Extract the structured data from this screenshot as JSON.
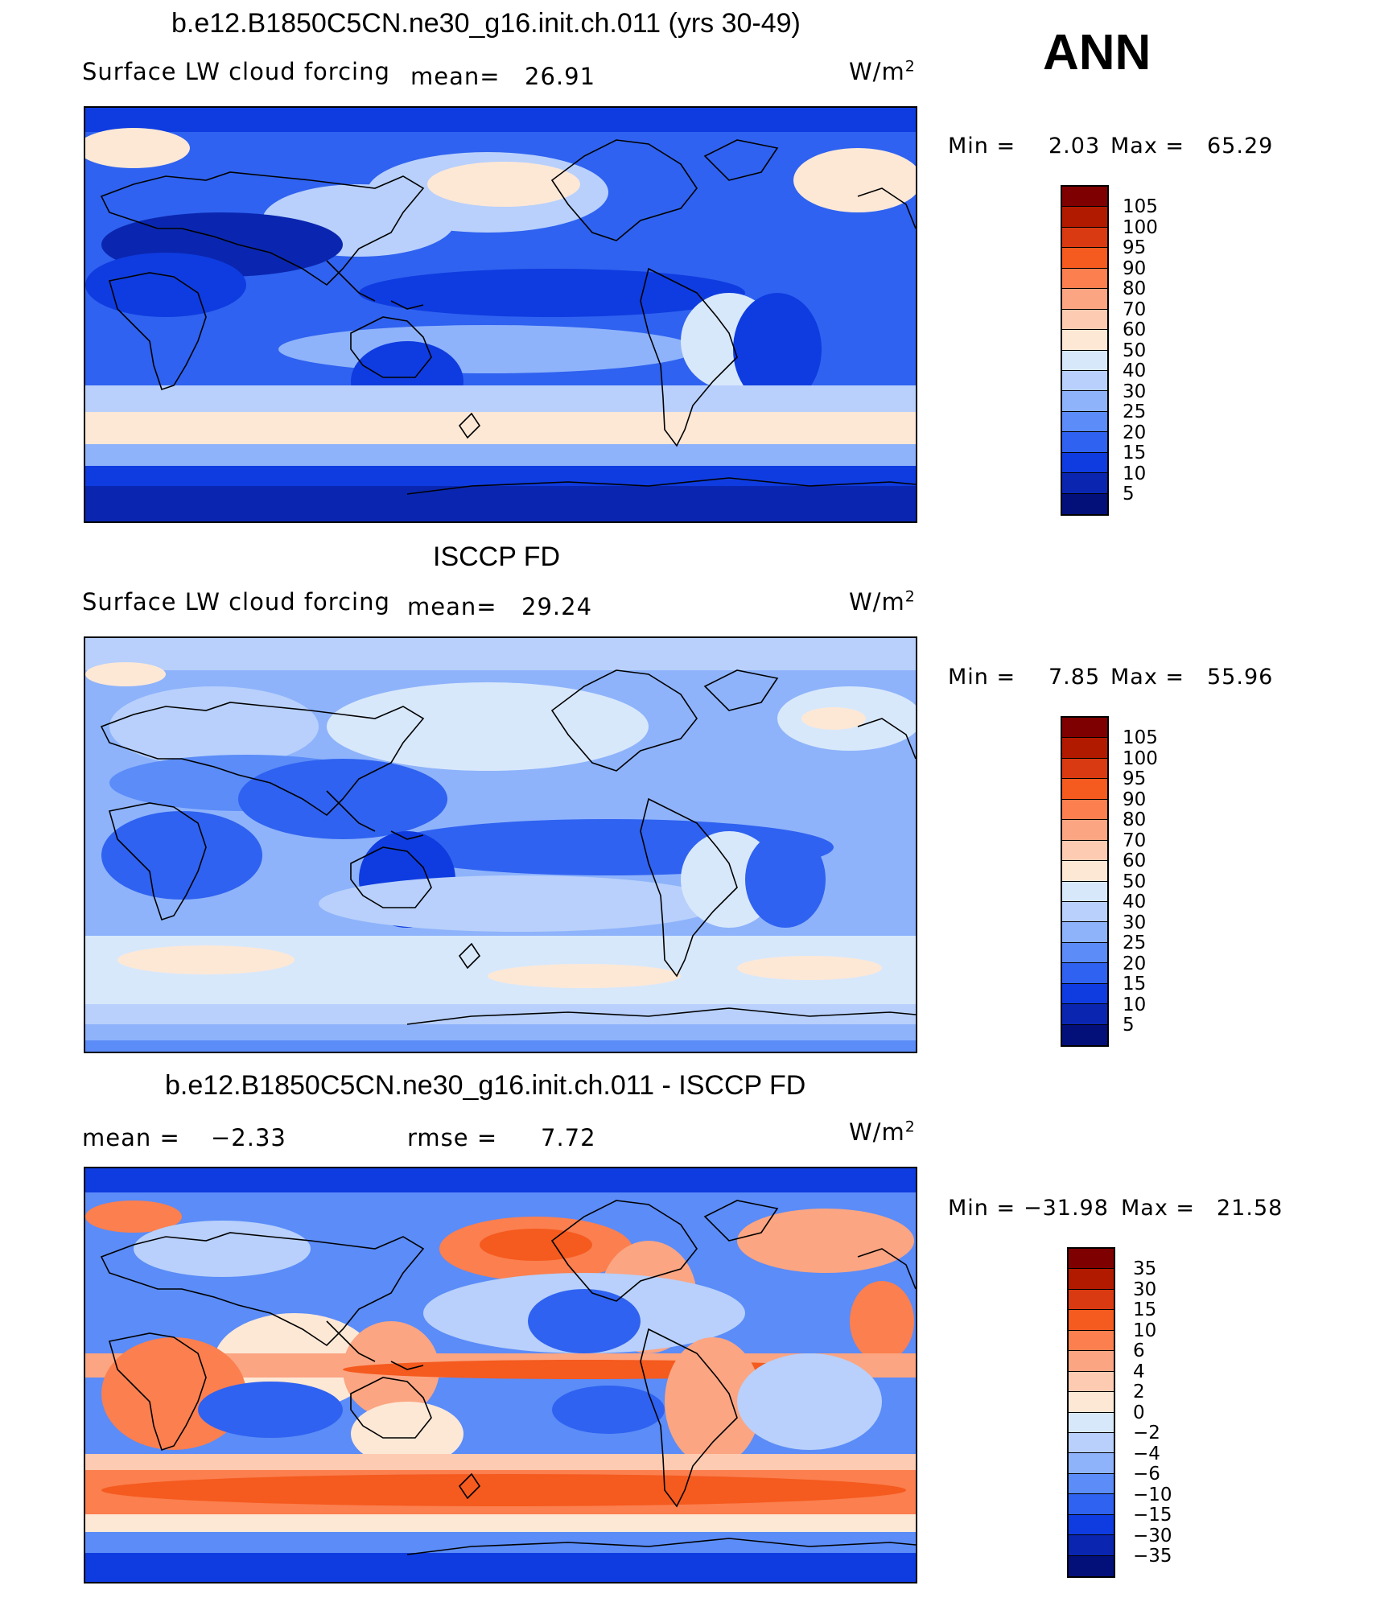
{
  "header": {
    "panel_tag": "ANN"
  },
  "panels": [
    {
      "title": "b.e12.B1850C5CN.ne30_g16.init.ch.011 (yrs 30-49)",
      "variable": "Surface LW cloud forcing",
      "mean_label": "mean=",
      "mean_value": "26.91",
      "units": "W/m",
      "units_exp": "2",
      "min_label": "Min =",
      "min_value": "2.03",
      "max_label": "Max =",
      "max_value": "65.29",
      "colorbar_labels": [
        "105",
        "100",
        "95",
        "90",
        "80",
        "70",
        "60",
        "50",
        "40",
        "30",
        "25",
        "20",
        "15",
        "10",
        "5"
      ]
    },
    {
      "title": "ISCCP FD",
      "variable": "Surface LW cloud forcing",
      "mean_label": "mean=",
      "mean_value": "29.24",
      "units": "W/m",
      "units_exp": "2",
      "min_label": "Min =",
      "min_value": "7.85",
      "max_label": "Max =",
      "max_value": "55.96",
      "colorbar_labels": [
        "105",
        "100",
        "95",
        "90",
        "80",
        "70",
        "60",
        "50",
        "40",
        "30",
        "25",
        "20",
        "15",
        "10",
        "5"
      ]
    },
    {
      "title": "b.e12.B1850C5CN.ne30_g16.init.ch.011 - ISCCP FD",
      "mean_label": "mean =",
      "mean_value": "−2.33",
      "rmse_label": "rmse =",
      "rmse_value": "7.72",
      "units": "W/m",
      "units_exp": "2",
      "min_label": "Min =",
      "min_value": "−31.98",
      "max_label": "Max =",
      "max_value": "21.58",
      "colorbar_labels": [
        "35",
        "30",
        "15",
        "10",
        "6",
        "4",
        "2",
        "0",
        "−2",
        "−4",
        "−6",
        "−10",
        "−15",
        "−30",
        "−35"
      ]
    }
  ],
  "colors": {
    "scale": [
      "#7f0000",
      "#b21a00",
      "#d93a12",
      "#f55a1e",
      "#fb7f4f",
      "#fba582",
      "#fdcbb1",
      "#fde8d6",
      "#d8e8fb",
      "#b8d0fb",
      "#8eb3fb",
      "#5b8cf8",
      "#2f62f0",
      "#0f3ce0",
      "#0a26b0",
      "#03107a"
    ]
  }
}
